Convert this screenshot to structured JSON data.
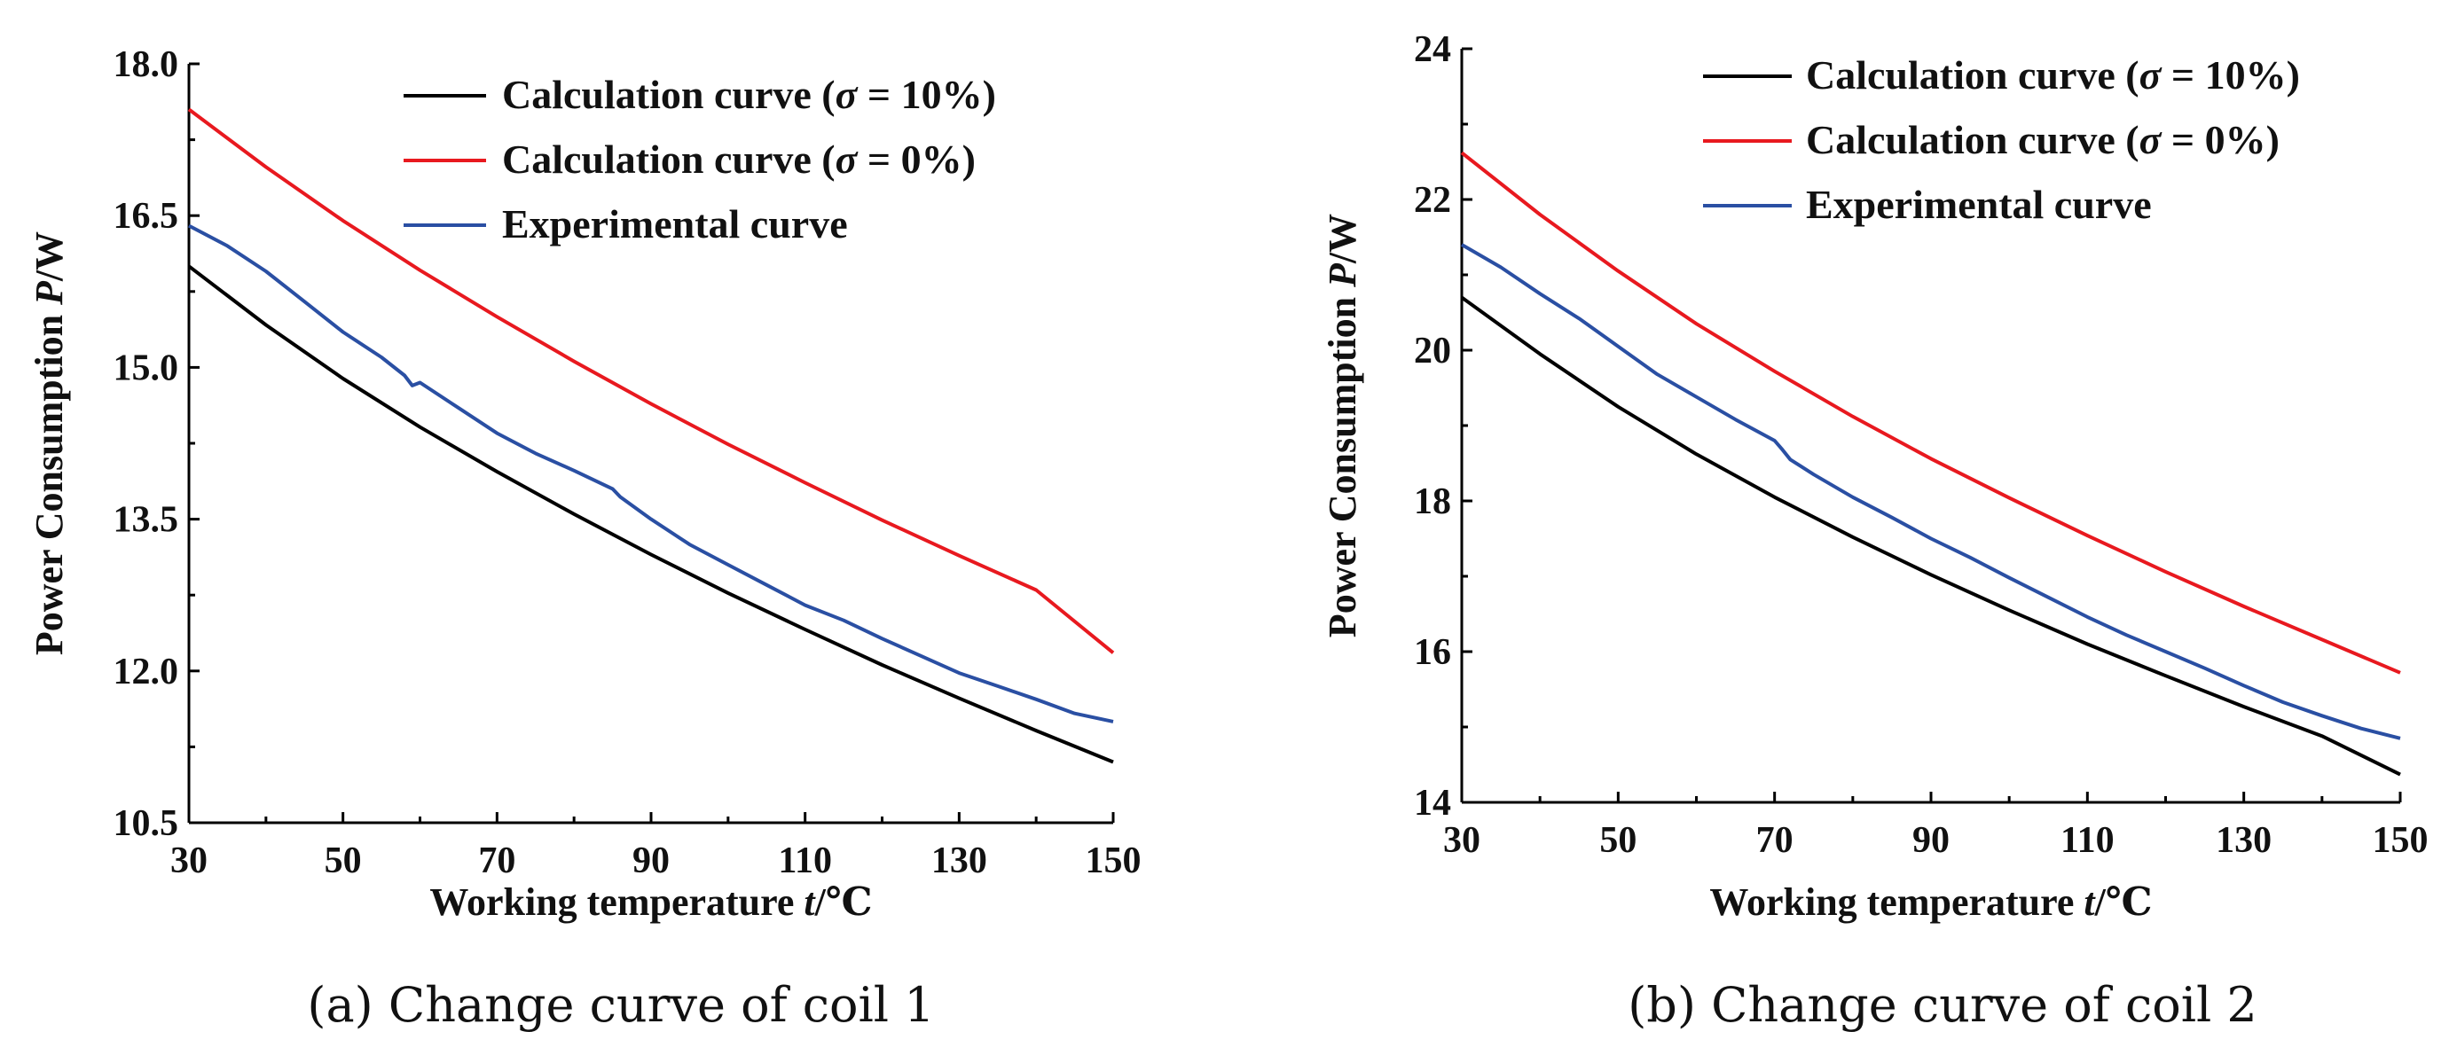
{
  "chart_data": [
    {
      "type": "line",
      "caption": "(a)  Change curve of coil 1",
      "xlabel": "Working temperature t/℃",
      "ylabel": "Power Consumption P/W",
      "xlim": [
        30,
        150
      ],
      "ylim": [
        10.5,
        18.0
      ],
      "xticks": [
        30,
        50,
        70,
        90,
        110,
        130,
        150
      ],
      "xtick_labels": [
        "30",
        "50",
        "70",
        "90",
        "110",
        "130",
        "150"
      ],
      "yticks": [
        10.5,
        12.0,
        13.5,
        15.0,
        16.5,
        18.0
      ],
      "ytick_labels": [
        "10.5",
        "12.0",
        "13.5",
        "15.0",
        "16.5",
        "18.0"
      ],
      "legend_position": "top-right",
      "series": [
        {
          "name": "Calculation curve (σ = 10%)",
          "color": "#000000",
          "x": [
            30,
            40,
            50,
            60,
            70,
            80,
            90,
            100,
            110,
            120,
            130,
            140,
            150
          ],
          "y": [
            16.0,
            15.42,
            14.89,
            14.41,
            13.97,
            13.55,
            13.15,
            12.77,
            12.41,
            12.06,
            11.73,
            11.41,
            11.1
          ]
        },
        {
          "name": "Calculation curve (σ = 0%)",
          "color": "#e8191f",
          "x": [
            30,
            40,
            50,
            60,
            70,
            80,
            90,
            100,
            110,
            120,
            130,
            140,
            150
          ],
          "y": [
            17.55,
            16.98,
            16.45,
            15.96,
            15.5,
            15.06,
            14.64,
            14.24,
            13.86,
            13.49,
            13.14,
            12.8,
            12.18
          ]
        },
        {
          "name": "Experimental curve",
          "color": "#2a4fa3",
          "x": [
            30,
            35,
            40,
            45,
            50,
            55,
            58,
            59,
            60,
            65,
            70,
            75,
            80,
            85,
            86,
            90,
            95,
            100,
            105,
            110,
            115,
            120,
            125,
            130,
            135,
            140,
            145,
            150
          ],
          "y": [
            16.4,
            16.2,
            15.95,
            15.65,
            15.35,
            15.1,
            14.92,
            14.82,
            14.85,
            14.6,
            14.35,
            14.15,
            13.98,
            13.8,
            13.72,
            13.5,
            13.25,
            13.05,
            12.85,
            12.65,
            12.5,
            12.32,
            12.15,
            11.98,
            11.85,
            11.72,
            11.58,
            11.5
          ]
        }
      ]
    },
    {
      "type": "line",
      "caption": "(b)  Change curve of coil 2",
      "xlabel": "Working temperature t/℃",
      "ylabel": "Power Consumption P/W",
      "xlim": [
        30,
        150
      ],
      "ylim": [
        14,
        24
      ],
      "xticks": [
        30,
        50,
        70,
        90,
        110,
        130,
        150
      ],
      "xtick_labels": [
        "30",
        "50",
        "70",
        "90",
        "110",
        "130",
        "150"
      ],
      "yticks": [
        14,
        16,
        18,
        20,
        22,
        24
      ],
      "ytick_labels": [
        "14",
        "16",
        "18",
        "20",
        "22",
        "24"
      ],
      "legend_position": "top-right",
      "series": [
        {
          "name": "Calculation curve (σ = 10%)",
          "color": "#000000",
          "x": [
            30,
            40,
            50,
            60,
            70,
            80,
            90,
            100,
            110,
            120,
            130,
            140,
            150
          ],
          "y": [
            20.7,
            19.95,
            19.25,
            18.62,
            18.05,
            17.52,
            17.02,
            16.55,
            16.1,
            15.68,
            15.27,
            14.88,
            14.37
          ]
        },
        {
          "name": "Calculation curve (σ = 0%)",
          "color": "#e8191f",
          "x": [
            30,
            40,
            50,
            60,
            70,
            80,
            90,
            100,
            110,
            120,
            130,
            140,
            150
          ],
          "y": [
            22.62,
            21.8,
            21.05,
            20.35,
            19.72,
            19.12,
            18.56,
            18.04,
            17.54,
            17.06,
            16.6,
            16.16,
            15.72
          ]
        },
        {
          "name": "Experimental curve",
          "color": "#2a4fa3",
          "x": [
            30,
            35,
            40,
            45,
            50,
            55,
            60,
            65,
            70,
            71,
            72,
            75,
            80,
            85,
            90,
            95,
            100,
            105,
            110,
            115,
            120,
            125,
            130,
            135,
            140,
            145,
            150
          ],
          "y": [
            21.4,
            21.1,
            20.75,
            20.42,
            20.05,
            19.68,
            19.38,
            19.08,
            18.8,
            18.68,
            18.55,
            18.35,
            18.05,
            17.78,
            17.5,
            17.25,
            16.98,
            16.72,
            16.46,
            16.22,
            16.0,
            15.78,
            15.55,
            15.33,
            15.15,
            14.98,
            14.85
          ]
        }
      ]
    }
  ]
}
